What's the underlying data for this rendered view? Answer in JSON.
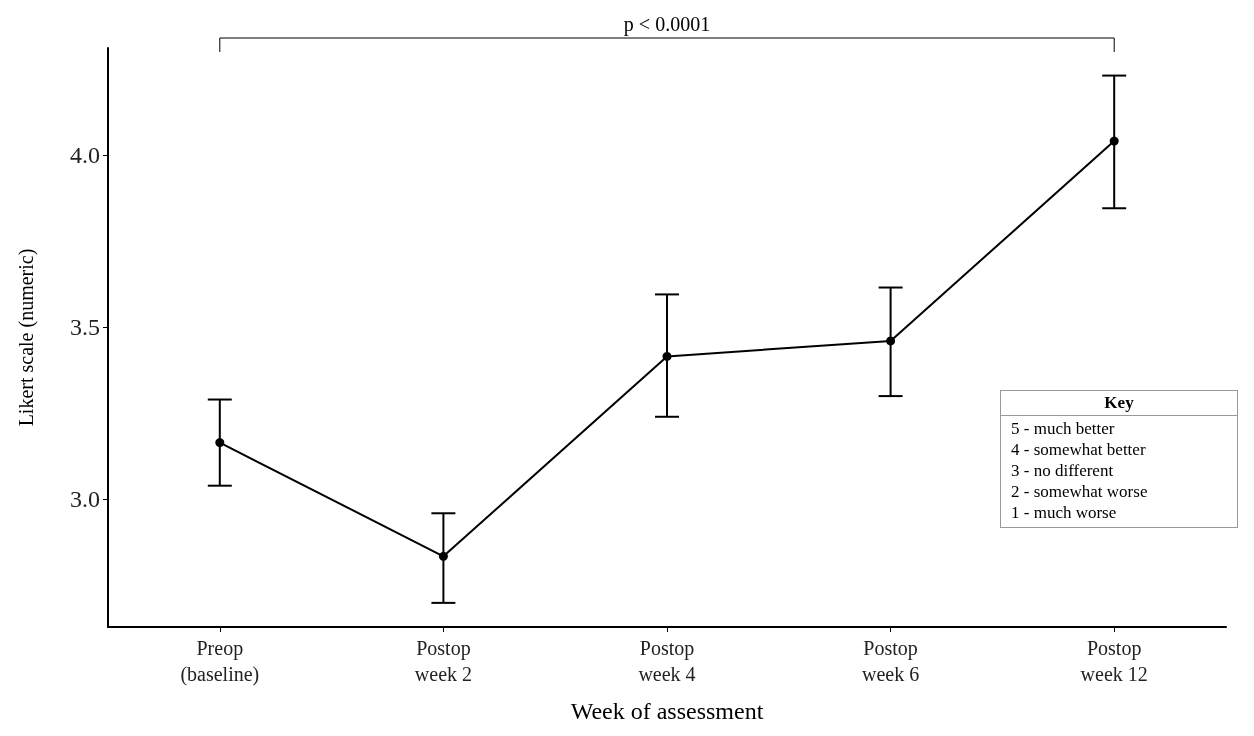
{
  "chart_data": {
    "type": "line",
    "xlabel": "Week of assessment",
    "ylabel": "Likert scale (numeric)",
    "categories": [
      "Preop\n(baseline)",
      "Postop\nweek 2",
      "Postop\nweek 4",
      "Postop\nweek 6",
      "Postop\nweek 12"
    ],
    "series": [
      {
        "color": "#000000",
        "values": [
          3.165,
          2.835,
          3.415,
          3.46,
          4.04
        ],
        "errors": [
          [
            3.04,
            3.29
          ],
          [
            2.7,
            2.96
          ],
          [
            3.24,
            3.595
          ],
          [
            3.3,
            3.615
          ],
          [
            3.845,
            4.23
          ]
        ]
      }
    ],
    "ylim": [
      2.63,
      4.31
    ],
    "yticks": [
      {
        "value": 3,
        "label": "3.0"
      },
      {
        "value": 3.5,
        "label": "3.5"
      },
      {
        "value": 4,
        "label": "4.0"
      }
    ],
    "grid": false,
    "marker": "circle",
    "line_style": "solid",
    "annotations": [
      "p < 0.0001",
      "Key",
      "5 - much better",
      "4 - somewhat better",
      "3 - no different",
      "2 - somewhat worse",
      "1 - much worse"
    ]
  }
}
